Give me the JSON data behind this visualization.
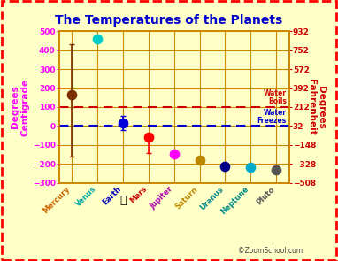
{
  "title": "The Temperatures of the Planets",
  "title_color": "#0000CC",
  "background_color": "#FFFFC8",
  "plot_background": "#FFFFC8",
  "grid_color": "#CC8800",
  "left_ylabel": "Degrees\nCentigrade",
  "right_ylabel": "Degrees\nFahrenheit",
  "left_ylabel_color": "#FF00FF",
  "right_ylabel_color": "#CC0000",
  "ylim_c": [
    -300,
    500
  ],
  "ylim_f": [
    -508,
    932
  ],
  "yticks_c": [
    -300,
    -200,
    -100,
    0,
    100,
    200,
    300,
    400,
    500
  ],
  "yticks_f": [
    -508,
    -328,
    -148,
    32,
    212,
    392,
    572,
    752,
    932
  ],
  "planets": [
    "Mercury",
    "Venus",
    "Earth",
    "Mars",
    "Jupiter",
    "Saturn",
    "Uranus",
    "Neptune",
    "Pluto"
  ],
  "planet_colors": [
    "#7B3000",
    "#00CCCC",
    "#0000DD",
    "#FF0000",
    "#FF00FF",
    "#BB8800",
    "#000088",
    "#00AACC",
    "#555555"
  ],
  "planet_label_colors": [
    "#CC6600",
    "#00AAAA",
    "#0000BB",
    "#CC0000",
    "#AA00AA",
    "#BB8800",
    "#008888",
    "#008888",
    "#555555"
  ],
  "temps_c": [
    167,
    460,
    15,
    -60,
    -150,
    -180,
    -215,
    -220,
    -230
  ],
  "error_up_c": [
    267,
    0,
    37,
    20,
    0,
    0,
    0,
    0,
    0
  ],
  "error_down_c": [
    330,
    0,
    37,
    83,
    0,
    0,
    0,
    0,
    0
  ],
  "water_boils_c": 100,
  "water_freezes_c": 0,
  "water_boils_label": "Water\nBoils",
  "water_freezes_label": "Water\nFreezes",
  "water_boils_color": "#CC0000",
  "water_freezes_color": "#0000CC",
  "dot_size": 55,
  "copyright": "©ZoomSchool.com"
}
